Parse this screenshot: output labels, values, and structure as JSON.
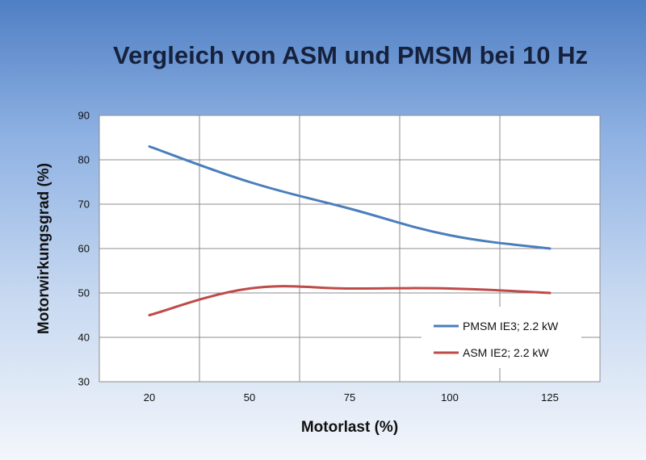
{
  "chart_data": {
    "type": "line",
    "title": "Vergleich von ASM und PMSM bei 10 Hz",
    "xlabel": "Motorlast (%)",
    "ylabel": "Motorwirkungsgrad (%)",
    "categories": [
      "20",
      "50",
      "75",
      "100",
      "125"
    ],
    "ylim": [
      30,
      90
    ],
    "yticks": [
      30,
      40,
      50,
      60,
      70,
      80,
      90
    ],
    "grid": true,
    "legend_position": "bottom-right",
    "series": [
      {
        "name": "PMSM IE3; 2.2 kW",
        "color": "#4a7ebb",
        "values": [
          83,
          75,
          69,
          63,
          60
        ]
      },
      {
        "name": "ASM IE2; 2.2 kW",
        "color": "#be4b48",
        "values": [
          45,
          51,
          51,
          51,
          50
        ]
      }
    ]
  }
}
